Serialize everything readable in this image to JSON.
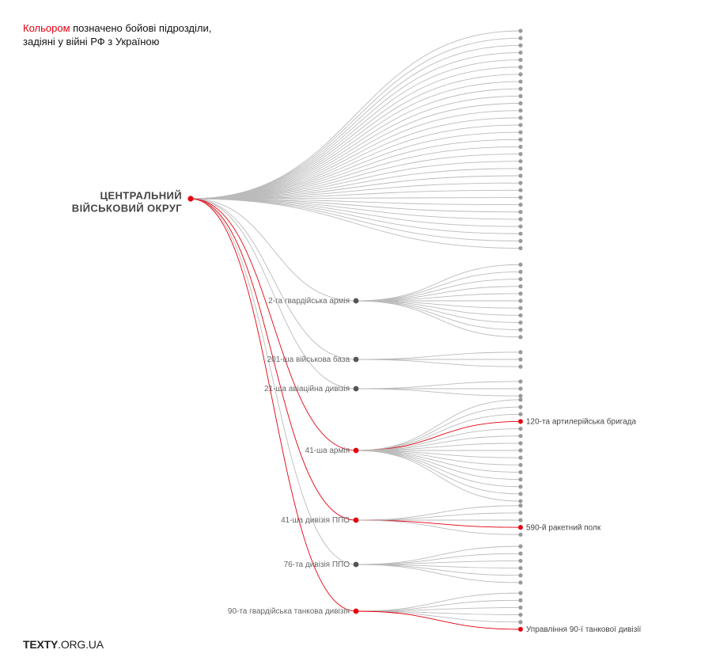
{
  "legend": {
    "highlight": "Кольором",
    "rest": " позначено бойові підрозділи, задіяні у війні РФ з Україною"
  },
  "logo": {
    "main": "TEXTY",
    "suffix": ".ORG.UA"
  },
  "colors": {
    "active": "#e3000f",
    "inactive": "#999999",
    "line": "#bbbbbb",
    "node": "#555555"
  },
  "tree": {
    "root": {
      "line1": "ЦЕНТРАЛЬНИЙ",
      "line2": "ВІЙСЬКОВИЙ ОКРУГ",
      "active": true
    },
    "direct_leaves": 31,
    "subunits": [
      {
        "name": "2-га гвардійська армія",
        "active": false,
        "leaves": [
          {
            "active": false
          },
          {
            "active": false
          },
          {
            "active": false
          },
          {
            "active": false
          },
          {
            "active": false
          },
          {
            "active": false
          },
          {
            "active": false
          },
          {
            "active": false
          },
          {
            "active": false
          },
          {
            "active": false
          },
          {
            "active": false
          }
        ]
      },
      {
        "name": "201-ша військова база",
        "active": false,
        "leaves": [
          {
            "active": false
          },
          {
            "active": false
          },
          {
            "active": false
          }
        ]
      },
      {
        "name": "21-ша авіаційна дивізія",
        "active": false,
        "leaves": [
          {
            "active": false
          },
          {
            "active": false
          },
          {
            "active": false
          }
        ]
      },
      {
        "name": "41-ша армія",
        "active": true,
        "leaves": [
          {
            "active": false
          },
          {
            "active": false
          },
          {
            "active": false
          },
          {
            "active": true,
            "label": "120-та артилерійська бригада"
          },
          {
            "active": false
          },
          {
            "active": false
          },
          {
            "active": false
          },
          {
            "active": false
          },
          {
            "active": false
          },
          {
            "active": false
          },
          {
            "active": false
          },
          {
            "active": false
          },
          {
            "active": false
          },
          {
            "active": false
          },
          {
            "active": false
          }
        ]
      },
      {
        "name": "41-ша дивізія ППО",
        "active": true,
        "leaves": [
          {
            "active": false
          },
          {
            "active": false
          },
          {
            "active": false
          },
          {
            "active": true,
            "label": "590-й ракетний полк"
          },
          {
            "active": false
          }
        ]
      },
      {
        "name": "76-та дивізія ППО",
        "active": false,
        "leaves": [
          {
            "active": false
          },
          {
            "active": false
          },
          {
            "active": false
          },
          {
            "active": false
          },
          {
            "active": false
          },
          {
            "active": false
          }
        ]
      },
      {
        "name": "90-та гвардійська танкова дивізія",
        "active": true,
        "leaves": [
          {
            "active": false
          },
          {
            "active": false
          },
          {
            "active": false
          },
          {
            "active": false
          },
          {
            "active": false
          },
          {
            "active": true,
            "label": "Управління 90-ї танкової дивізії"
          }
        ]
      }
    ]
  }
}
